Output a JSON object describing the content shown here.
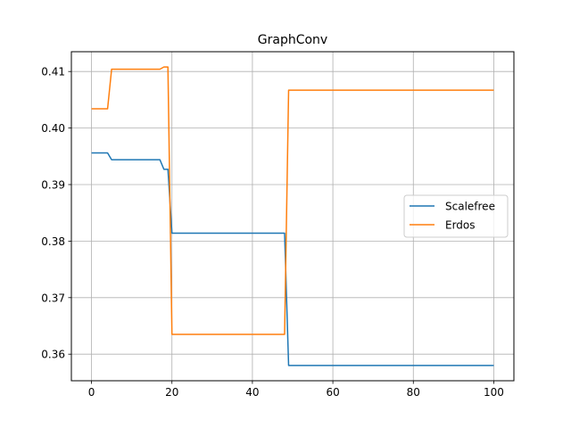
{
  "chart_data": {
    "type": "line",
    "title": "GraphConv",
    "xlabel": "",
    "ylabel": "",
    "xlim": [
      -5,
      105
    ],
    "ylim": [
      0.3553,
      0.4135
    ],
    "xticks": [
      0,
      20,
      40,
      60,
      80,
      100
    ],
    "xtick_labels": [
      "0",
      "20",
      "40",
      "60",
      "80",
      "100"
    ],
    "yticks": [
      0.36,
      0.37,
      0.38,
      0.39,
      0.4,
      0.41
    ],
    "ytick_labels": [
      "0.36",
      "0.37",
      "0.38",
      "0.39",
      "0.40",
      "0.41"
    ],
    "grid": true,
    "legend_position": "center-right",
    "series": [
      {
        "name": "Scalefree",
        "color": "#1f77b4",
        "x": [
          0,
          4,
          5,
          17,
          18,
          19,
          20,
          48,
          49,
          100
        ],
        "y": [
          0.3956,
          0.3956,
          0.3944,
          0.3944,
          0.3927,
          0.3927,
          0.3814,
          0.3814,
          0.358,
          0.358
        ]
      },
      {
        "name": "Erdos",
        "color": "#ff7f0e",
        "x": [
          0,
          4,
          5,
          17,
          18,
          19,
          20,
          48,
          49,
          100
        ],
        "y": [
          0.4034,
          0.4034,
          0.4104,
          0.4104,
          0.4108,
          0.4108,
          0.3635,
          0.3635,
          0.4067,
          0.4067
        ]
      }
    ]
  }
}
